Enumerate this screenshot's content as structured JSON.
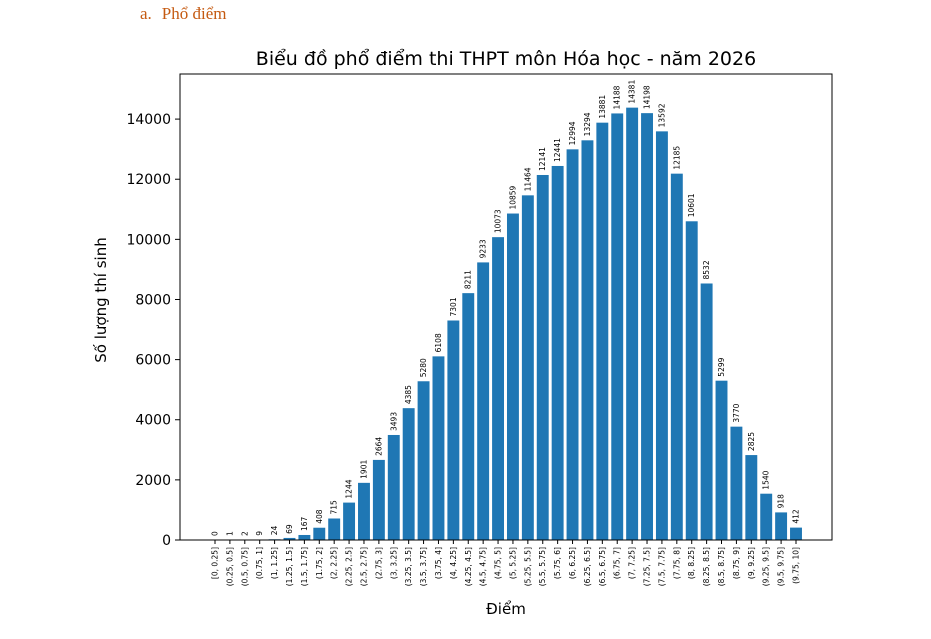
{
  "section": {
    "number": "a.",
    "title": "Phổ điểm"
  },
  "chart_data": {
    "type": "bar",
    "title": "Biểu đồ phổ điểm thi THPT môn Hóa học - năm 2026",
    "xlabel": "Điểm",
    "ylabel": "Số lượng thí sinh",
    "ylim": [
      0,
      15500
    ],
    "yticks": [
      0,
      2000,
      4000,
      6000,
      8000,
      10000,
      12000,
      14000
    ],
    "bar_color": "#1f77b4",
    "grid": false,
    "categories": [
      "[0, 0.25]",
      "(0.25, 0.5]",
      "(0.5, 0.75]",
      "(0.75, 1]",
      "(1, 1.25]",
      "(1.25, 1.5]",
      "(1.5, 1.75]",
      "(1.75, 2]",
      "(2, 2.25]",
      "(2.25, 2.5]",
      "(2.5, 2.75]",
      "(2.75, 3]",
      "(3, 3.25]",
      "(3.25, 3.5]",
      "(3.5, 3.75]",
      "(3.75, 4]",
      "(4, 4.25]",
      "(4.25, 4.5]",
      "(4.5, 4.75]",
      "(4.75, 5]",
      "(5, 5.25]",
      "(5.25, 5.5]",
      "(5.5, 5.75]",
      "(5.75, 6]",
      "(6, 6.25]",
      "(6.25, 6.5]",
      "(6.5, 6.75]",
      "(6.75, 7]",
      "(7, 7.25]",
      "(7.25, 7.5]",
      "(7.5, 7.75]",
      "(7.75, 8]",
      "(8, 8.25]",
      "(8.25, 8.5]",
      "(8.5, 8.75]",
      "(8.75, 9]",
      "(9, 9.25]",
      "(9.25, 9.5]",
      "(9.5, 9.75]",
      "(9.75, 10]"
    ],
    "values": [
      0,
      1,
      2,
      9,
      24,
      69,
      167,
      408,
      715,
      1244,
      1901,
      2664,
      3493,
      4385,
      5280,
      6108,
      7301,
      8211,
      9233,
      10073,
      10859,
      11464,
      12141,
      12441,
      12994,
      13294,
      13881,
      14188,
      14381,
      14198,
      13592,
      12185,
      10601,
      8532,
      5299,
      3770,
      2825,
      1540,
      918,
      412
    ]
  }
}
